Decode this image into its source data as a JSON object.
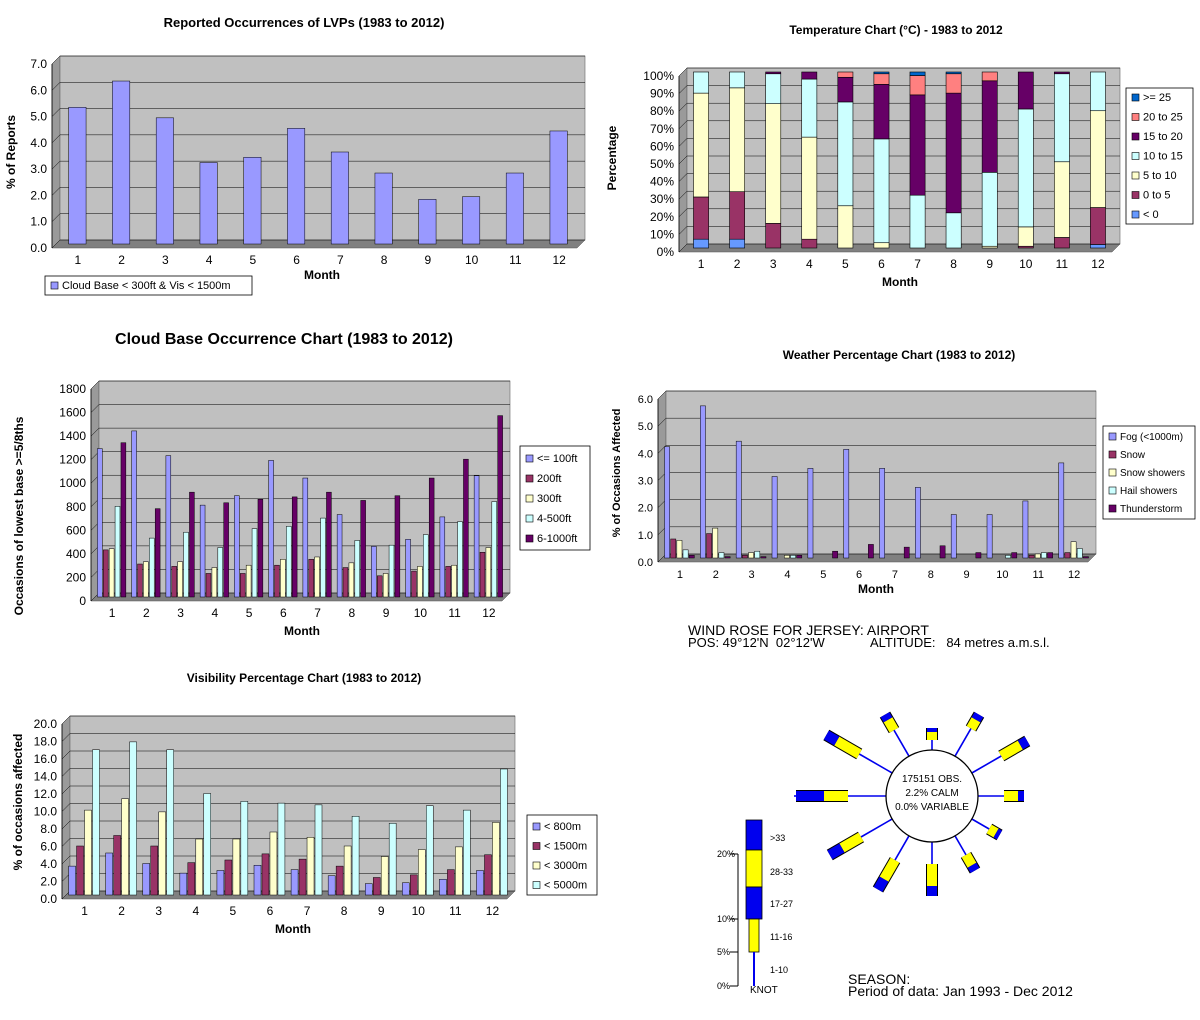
{
  "charts": {
    "lvp": {
      "title": "Reported Occurrences of LVPs (1983 to 2012)",
      "ylabel": "% of Reports",
      "xlabel": "Month"
    },
    "temp": {
      "title": "Temperature Chart (°C) - 1983 to 2012",
      "ylabel": "Percentage",
      "xlabel": "Month"
    },
    "cloud": {
      "title": "Cloud Base Occurrence Chart (1983 to 2012)",
      "ylabel": "Occasions of lowest base >=5/8ths",
      "xlabel": "Month"
    },
    "weather": {
      "title": "Weather Percentage Chart (1983 to 2012)",
      "ylabel": "% of Occasions Affected",
      "xlabel": "Month"
    },
    "vis": {
      "title": "Visibility  Percentage Chart (1983 to 2012)",
      "ylabel": "% of occasions affected",
      "xlabel": "Month"
    }
  },
  "windrose": {
    "title_line1": "WIND ROSE FOR JERSEY: AIRPORT",
    "pos_label": "POS: 49°12'N  02°12'W",
    "altitude_label": "ALTITUDE:   84 metres a.m.s.l.",
    "center_obs": "175151 OBS.",
    "center_calm": "2.2% CALM",
    "center_variable": "0.0% VARIABLE",
    "scale_ticks": [
      "20%",
      "10%",
      "5%",
      "0%"
    ],
    "speed_bands": [
      ">33",
      "28-33",
      "17-27",
      "11-16",
      "1-10"
    ],
    "unit": "KNOT",
    "season_label": "SEASON:",
    "period_label": "Period of data: Jan 1993 - Dec 2012",
    "colors": {
      "blue": "#0000ee",
      "yellow": "#ffff00"
    }
  },
  "chart_data": [
    {
      "type": "bar",
      "title": "Reported Occurrences of LVPs (1983 to 2012)",
      "xlabel": "Month",
      "ylabel": "% of Reports",
      "categories": [
        "1",
        "2",
        "3",
        "4",
        "5",
        "6",
        "7",
        "8",
        "9",
        "10",
        "11",
        "12"
      ],
      "series": [
        {
          "name": "Cloud Base < 300ft & Vis < 1500m",
          "color": "#9999ff",
          "values": [
            5.2,
            6.2,
            4.8,
            3.1,
            3.3,
            4.4,
            3.5,
            2.7,
            1.7,
            1.8,
            2.7,
            4.3
          ]
        }
      ],
      "ylim": [
        0,
        7
      ],
      "yticks": [
        "0.0",
        "1.0",
        "2.0",
        "3.0",
        "4.0",
        "5.0",
        "6.0",
        "7.0"
      ],
      "legend": "bottom-left",
      "grid": true,
      "plot_bg": "#c0c0c0"
    },
    {
      "type": "bar",
      "stacked": true,
      "title": "Temperature Chart (°C) - 1983 to 2012",
      "xlabel": "Month",
      "ylabel": "Percentage",
      "categories": [
        "1",
        "2",
        "3",
        "4",
        "5",
        "6",
        "7",
        "8",
        "9",
        "10",
        "11",
        "12"
      ],
      "series": [
        {
          "name": "< 0",
          "color": "#6699ff",
          "values": [
            5,
            5,
            0,
            0,
            0,
            0,
            0,
            0,
            0,
            0,
            0,
            2
          ]
        },
        {
          "name": "0 to 5",
          "color": "#993366",
          "values": [
            24,
            27,
            14,
            5,
            0,
            0,
            0,
            0,
            0,
            1,
            6,
            21
          ]
        },
        {
          "name": "5 to 10",
          "color": "#ffffcc",
          "values": [
            59,
            59,
            68,
            58,
            24,
            3,
            0,
            0,
            1,
            11,
            43,
            55
          ]
        },
        {
          "name": "10 to 15",
          "color": "#ccffff",
          "values": [
            12,
            9,
            17,
            33,
            59,
            59,
            30,
            20,
            42,
            67,
            50,
            22
          ]
        },
        {
          "name": "15 to 20",
          "color": "#660066",
          "values": [
            0,
            0,
            1,
            4,
            14,
            31,
            57,
            68,
            52,
            21,
            1,
            0
          ]
        },
        {
          "name": "20 to 25",
          "color": "#ff8080",
          "values": [
            0,
            0,
            0,
            0,
            3,
            6,
            11,
            11,
            5,
            0,
            0,
            0
          ]
        },
        {
          "name": ">= 25",
          "color": "#0066cc",
          "values": [
            0,
            0,
            0,
            0,
            0,
            1,
            2,
            1,
            0,
            0,
            0,
            0
          ]
        }
      ],
      "ylim": [
        0,
        100
      ],
      "yticks": [
        "0%",
        "10%",
        "20%",
        "30%",
        "40%",
        "50%",
        "60%",
        "70%",
        "80%",
        "90%",
        "100%"
      ],
      "legend": "right",
      "grid": true,
      "plot_bg": "#c0c0c0"
    },
    {
      "type": "bar",
      "title": "Cloud Base Occurrence Chart (1983 to 2012)",
      "xlabel": "Month",
      "ylabel": "Occasions of lowest base >=5/8ths",
      "categories": [
        "1",
        "2",
        "3",
        "4",
        "5",
        "6",
        "7",
        "8",
        "9",
        "10",
        "11",
        "12"
      ],
      "series": [
        {
          "name": "<= 100ft",
          "color": "#9999ff",
          "values": [
            1260,
            1410,
            1200,
            780,
            860,
            1160,
            1010,
            700,
            430,
            490,
            680,
            1030
          ]
        },
        {
          "name": "200ft",
          "color": "#993366",
          "values": [
            400,
            280,
            260,
            200,
            200,
            270,
            320,
            250,
            180,
            220,
            260,
            380
          ]
        },
        {
          "name": "300ft",
          "color": "#ffffcc",
          "values": [
            410,
            300,
            300,
            250,
            270,
            320,
            340,
            290,
            200,
            260,
            270,
            420
          ]
        },
        {
          "name": "4-500ft",
          "color": "#ccffff",
          "values": [
            770,
            500,
            550,
            420,
            580,
            600,
            670,
            480,
            440,
            530,
            640,
            810
          ]
        },
        {
          "name": "6-1000ft",
          "color": "#660066",
          "values": [
            1310,
            750,
            890,
            800,
            830,
            850,
            890,
            820,
            860,
            1010,
            1170,
            1540
          ]
        }
      ],
      "ylim": [
        0,
        1800
      ],
      "yticks": [
        "0",
        "200",
        "400",
        "600",
        "800",
        "1000",
        "1200",
        "1400",
        "1600",
        "1800"
      ],
      "legend": "right",
      "grid": true,
      "plot_bg": "#c0c0c0"
    },
    {
      "type": "bar",
      "title": "Weather Percentage Chart (1983 to 2012)",
      "xlabel": "Month",
      "ylabel": "% of Occasions Affected",
      "categories": [
        "1",
        "2",
        "3",
        "4",
        "5",
        "6",
        "7",
        "8",
        "9",
        "10",
        "11",
        "12"
      ],
      "series": [
        {
          "name": "Fog (<1000m)",
          "color": "#9999ff",
          "values": [
            4.1,
            5.6,
            4.3,
            3.0,
            3.3,
            4.0,
            3.3,
            2.6,
            1.6,
            1.6,
            2.1,
            3.5
          ]
        },
        {
          "name": "Snow",
          "color": "#993366",
          "values": [
            0.7,
            0.9,
            0.1,
            0.0,
            0.0,
            0.0,
            0.0,
            0.0,
            0.0,
            0.0,
            0.1,
            0.2
          ]
        },
        {
          "name": "Snow showers",
          "color": "#ffffcc",
          "values": [
            0.65,
            1.1,
            0.2,
            0.1,
            0.0,
            0.0,
            0.0,
            0.0,
            0.0,
            0.0,
            0.15,
            0.6
          ]
        },
        {
          "name": "Hail showers",
          "color": "#ccffff",
          "values": [
            0.3,
            0.2,
            0.25,
            0.1,
            0.0,
            0.0,
            0.0,
            0.0,
            0.0,
            0.1,
            0.2,
            0.35
          ]
        },
        {
          "name": "Thunderstorm",
          "color": "#660066",
          "values": [
            0.1,
            0.05,
            0.05,
            0.1,
            0.25,
            0.5,
            0.4,
            0.45,
            0.2,
            0.2,
            0.2,
            0.05
          ]
        }
      ],
      "ylim": [
        0,
        6
      ],
      "yticks": [
        "0.0",
        "1.0",
        "2.0",
        "3.0",
        "4.0",
        "5.0",
        "6.0"
      ],
      "legend": "right",
      "grid": true,
      "plot_bg": "#c0c0c0"
    },
    {
      "type": "bar",
      "title": "Visibility  Percentage Chart (1983 to 2012)",
      "xlabel": "Month",
      "ylabel": "% of occasions affected",
      "categories": [
        "1",
        "2",
        "3",
        "4",
        "5",
        "6",
        "7",
        "8",
        "9",
        "10",
        "11",
        "12"
      ],
      "series": [
        {
          "name": "< 800m",
          "color": "#9999ff",
          "values": [
            3.3,
            4.8,
            3.6,
            2.5,
            2.8,
            3.4,
            2.9,
            2.2,
            1.3,
            1.4,
            1.8,
            2.8
          ]
        },
        {
          "name": "< 1500m",
          "color": "#993366",
          "values": [
            5.6,
            6.8,
            5.6,
            3.7,
            4.0,
            4.7,
            4.1,
            3.3,
            2.0,
            2.3,
            2.9,
            4.6
          ]
        },
        {
          "name": "< 3000m",
          "color": "#ffffcc",
          "values": [
            9.7,
            11.0,
            9.5,
            6.4,
            6.4,
            7.2,
            6.6,
            5.6,
            4.4,
            5.2,
            5.5,
            8.3
          ]
        },
        {
          "name": "< 5000m",
          "color": "#ccffff",
          "values": [
            16.6,
            17.5,
            16.6,
            11.6,
            10.7,
            10.5,
            10.3,
            9.0,
            8.2,
            10.2,
            9.7,
            14.4
          ]
        }
      ],
      "ylim": [
        0,
        20
      ],
      "yticks": [
        "0.0",
        "2.0",
        "4.0",
        "6.0",
        "8.0",
        "10.0",
        "12.0",
        "14.0",
        "16.0",
        "18.0",
        "20.0"
      ],
      "legend": "right",
      "grid": true,
      "plot_bg": "#c0c0c0"
    }
  ]
}
